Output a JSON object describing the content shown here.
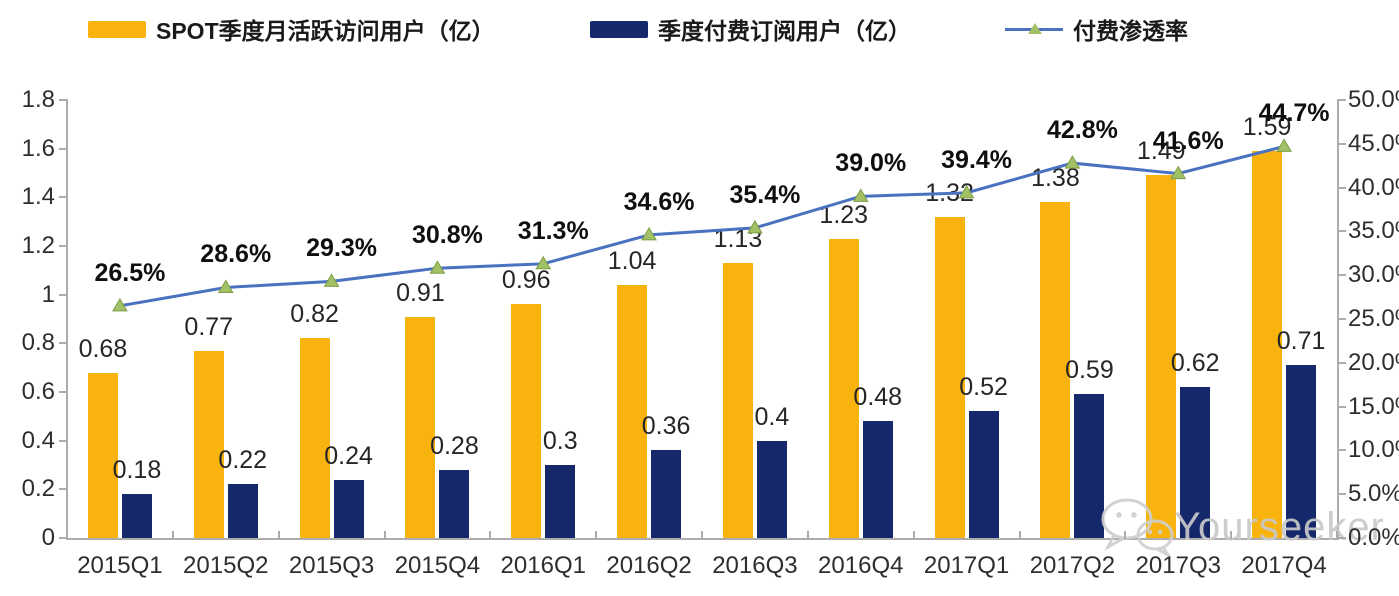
{
  "legend": {
    "items": [
      {
        "label": "SPOT季度月活跃访问用户（亿）",
        "swatch": "bar",
        "color": "#F8B30E"
      },
      {
        "label": "季度付费订阅用户（亿）",
        "swatch": "bar",
        "color": "#15286B"
      },
      {
        "label": "付费渗透率",
        "swatch": "line-marker",
        "line_color": "#4A72C0",
        "marker_color": "#A2C065"
      }
    ]
  },
  "watermark": {
    "icon": "wechat-icon",
    "text": "Yourseeker",
    "color": "#c9c9c9"
  },
  "chart_data": {
    "type": "bar",
    "subtype": "dual-axis combo: grouped bars + line",
    "title": "",
    "grid": false,
    "legend_position": "top",
    "categories": [
      "2015Q1",
      "2015Q2",
      "2015Q3",
      "2015Q4",
      "2016Q1",
      "2016Q2",
      "2016Q3",
      "2016Q4",
      "2017Q1",
      "2017Q2",
      "2017Q3",
      "2017Q4"
    ],
    "series": [
      {
        "name": "SPOT季度月活跃访问用户（亿）",
        "type": "bar",
        "axis": "left",
        "color": "#F8B30E",
        "values": [
          0.68,
          0.77,
          0.82,
          0.91,
          0.96,
          1.04,
          1.13,
          1.23,
          1.32,
          1.38,
          1.49,
          1.59
        ],
        "labels": [
          "0.68",
          "0.77",
          "0.82",
          "0.91",
          "0.96",
          "1.04",
          "1.13",
          "1.23",
          "1.32",
          "1.38",
          "1.49",
          "1.59"
        ]
      },
      {
        "name": "季度付费订阅用户（亿）",
        "type": "bar",
        "axis": "left",
        "color": "#15286B",
        "values": [
          0.18,
          0.22,
          0.24,
          0.28,
          0.3,
          0.36,
          0.4,
          0.48,
          0.52,
          0.59,
          0.62,
          0.71
        ],
        "labels": [
          "0.18",
          "0.22",
          "0.24",
          "0.28",
          "0.3",
          "0.36",
          "0.4",
          "0.48",
          "0.52",
          "0.59",
          "0.62",
          "0.71"
        ]
      },
      {
        "name": "付费渗透率",
        "type": "line",
        "axis": "right",
        "color": "#4A72C0",
        "marker": "triangle",
        "marker_color": "#A2C065",
        "marker_edge_color": "#7E9E45",
        "values": [
          26.5,
          28.6,
          29.3,
          30.8,
          31.3,
          34.6,
          35.4,
          39.0,
          39.4,
          42.8,
          41.6,
          44.7
        ],
        "labels": [
          "26.5%",
          "28.6%",
          "29.3%",
          "30.8%",
          "31.3%",
          "34.6%",
          "35.4%",
          "39.0%",
          "39.4%",
          "42.8%",
          "41.6%",
          "44.7%"
        ]
      }
    ],
    "left_axis": {
      "min": 0,
      "max": 1.8,
      "step": 0.2,
      "ticks": [
        "0",
        "0.2",
        "0.4",
        "0.6",
        "0.8",
        "1",
        "1.2",
        "1.4",
        "1.6",
        "1.8"
      ]
    },
    "right_axis": {
      "min": 0,
      "max": 50,
      "step": 5,
      "ticks": [
        "0.0%",
        "5.0%",
        "10.0%",
        "15.0%",
        "20.0%",
        "25.0%",
        "30.0%",
        "35.0%",
        "40.0%",
        "45.0%",
        "50.0%"
      ]
    }
  }
}
